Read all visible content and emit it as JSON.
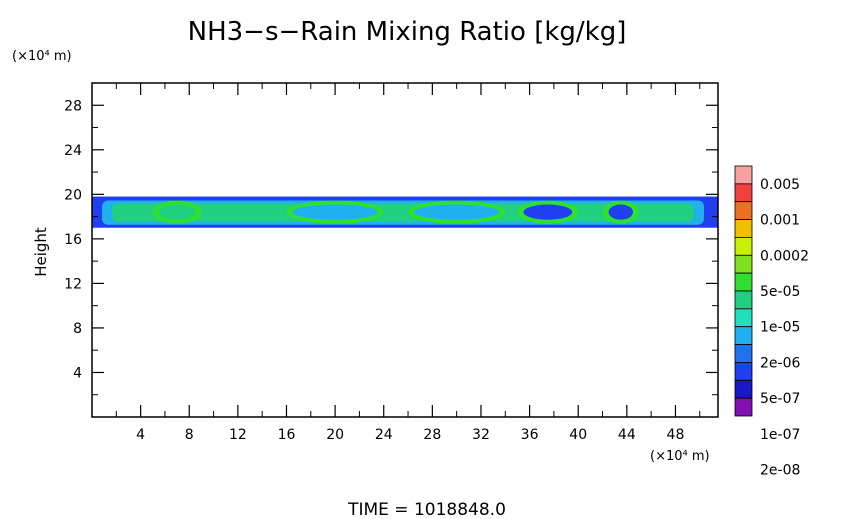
{
  "chart_data": {
    "type": "heatmap",
    "title": "NH3−s−Rain Mixing Ratio [kg/kg]",
    "ylabel": "Height",
    "xunit": "(×10⁴ m)",
    "yunit": "(×10⁴ m)",
    "footer": "TIME  =  1018848.0",
    "xlim": [
      0,
      51.5
    ],
    "ylim": [
      0,
      30
    ],
    "xticks": [
      4,
      8,
      12,
      16,
      20,
      24,
      28,
      32,
      36,
      40,
      44,
      48
    ],
    "yticks": [
      4,
      8,
      12,
      16,
      20,
      24,
      28
    ],
    "colorbar": {
      "labels": [
        "0.005",
        "0.001",
        "0.0002",
        "5e-05",
        "1e-05",
        "2e-06",
        "5e-07",
        "1e-07",
        "2e-08"
      ],
      "colors": [
        "#f7a0a0",
        "#f04040",
        "#f07020",
        "#f0c000",
        "#c8f000",
        "#80e020",
        "#30e030",
        "#20d080",
        "#20e0c0",
        "#20b0f0",
        "#2070f0",
        "#2040f0",
        "#1818c8",
        "#8010b0"
      ]
    },
    "band": {
      "y_bottom": 17,
      "y_top": 19.8,
      "x_start": 0,
      "x_end": 51.5,
      "core_regions": [
        {
          "x0": 5,
          "x1": 9,
          "level": "5e-05"
        },
        {
          "x0": 16,
          "x1": 24,
          "level": "1e-05"
        },
        {
          "x0": 26,
          "x1": 34,
          "level": "1e-05"
        },
        {
          "x0": 35,
          "x1": 40,
          "level": "2e-06"
        },
        {
          "x0": 42,
          "x1": 45,
          "level": "2e-06"
        }
      ]
    }
  }
}
